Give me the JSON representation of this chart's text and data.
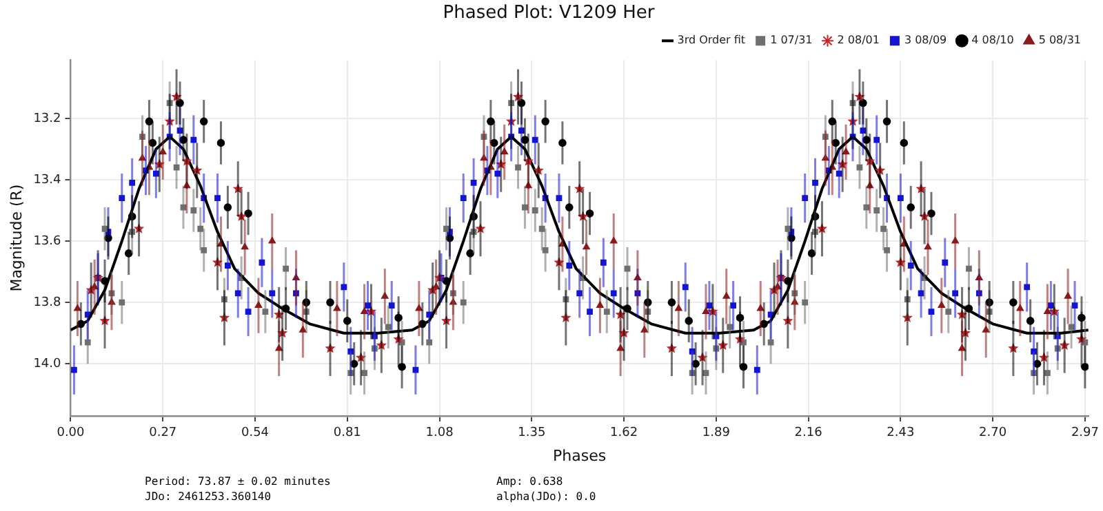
{
  "chart_data": {
    "type": "scatter",
    "title": "Phased Plot: V1209 Her",
    "xlabel": "Phases",
    "ylabel": "Magnitude (R)",
    "xlim": [
      0,
      2.98
    ],
    "xticks": [
      {
        "value": 0,
        "label": "0.00"
      },
      0.27,
      0.54,
      0.81,
      1.08,
      1.35,
      1.62,
      1.89,
      2.16,
      2.43,
      {
        "value": 2.7,
        "label": "2.70"
      },
      2.97
    ],
    "ylim": [
      14.17,
      13.01
    ],
    "yticks": [
      13.2,
      13.4,
      13.6,
      13.8,
      {
        "value": 14,
        "label": "14.0"
      }
    ],
    "grid": true,
    "legend": "top right",
    "annotations": [
      "Period: 73.87 ± 0.02 minutes",
      "JDo: 2461253.360140",
      "Amp: 0.638",
      "alpha(JDo): 0.0"
    ],
    "series": [
      {
        "name": "3rd Order fit",
        "type": "line",
        "color": "#000000",
        "marker": "none",
        "line_style": "solid",
        "x": [
          0,
          0.05,
          0.1,
          0.15,
          0.2,
          0.25,
          0.29,
          0.33,
          0.38,
          0.43,
          0.48,
          0.55,
          0.62,
          0.7,
          0.8,
          0.9,
          1,
          1.05,
          1.1,
          1.15,
          1.2,
          1.25,
          1.29,
          1.33,
          1.38,
          1.43,
          1.48,
          1.55,
          1.62,
          1.7,
          1.8,
          1.9,
          2,
          2.05,
          2.1,
          2.15,
          2.2,
          2.25,
          2.29,
          2.33,
          2.38,
          2.43,
          2.48,
          2.55,
          2.62,
          2.7,
          2.8,
          2.9,
          2.98
        ],
        "values": [
          13.89,
          13.86,
          13.76,
          13.6,
          13.43,
          13.3,
          13.26,
          13.3,
          13.42,
          13.57,
          13.69,
          13.77,
          13.82,
          13.87,
          13.9,
          13.9,
          13.89,
          13.86,
          13.76,
          13.6,
          13.43,
          13.3,
          13.26,
          13.3,
          13.42,
          13.57,
          13.69,
          13.77,
          13.82,
          13.87,
          13.9,
          13.9,
          13.89,
          13.86,
          13.76,
          13.6,
          13.43,
          13.3,
          13.26,
          13.3,
          13.42,
          13.57,
          13.69,
          13.77,
          13.82,
          13.87,
          13.9,
          13.9,
          13.89
        ]
      },
      {
        "name": "1 07/31",
        "type": "scatter",
        "color": "#707070",
        "marker": "square",
        "x": [
          0.05,
          0.1,
          0.12,
          0.15,
          0.18,
          0.21,
          0.29,
          0.31,
          0.33,
          0.36,
          0.38,
          0.39,
          0.45,
          0.5,
          0.57,
          0.63,
          0.69,
          0.82,
          0.86,
          0.89,
          0.93,
          0.97,
          1.05,
          1.1,
          1.12,
          1.15,
          1.18,
          1.21,
          1.29,
          1.31,
          1.33,
          1.36,
          1.38,
          1.39,
          1.45,
          1.5,
          1.57,
          1.63,
          1.69,
          1.82,
          1.86,
          1.89,
          1.93,
          1.97,
          2.05,
          2.1,
          2.12,
          2.15,
          2.18,
          2.21,
          2.29,
          2.31,
          2.33,
          2.36,
          2.38,
          2.39,
          2.45,
          2.5,
          2.57,
          2.63,
          2.69,
          2.82,
          2.86,
          2.89,
          2.93,
          2.97
        ],
        "values": [
          13.93,
          13.56,
          13.77,
          13.8,
          13.57,
          13.26,
          13.15,
          13.36,
          13.49,
          13.5,
          13.56,
          13.63,
          13.79,
          13.72,
          13.83,
          13.69,
          13.83,
          14.03,
          14.03,
          13.95,
          13.88,
          13.93,
          13.93,
          13.56,
          13.77,
          13.8,
          13.57,
          13.26,
          13.15,
          13.36,
          13.49,
          13.5,
          13.56,
          13.63,
          13.79,
          13.72,
          13.83,
          13.69,
          13.83,
          14.03,
          14.03,
          13.95,
          13.88,
          13.93,
          13.93,
          13.56,
          13.77,
          13.8,
          13.57,
          13.26,
          13.15,
          13.36,
          13.49,
          13.5,
          13.56,
          13.63,
          13.79,
          13.72,
          13.83,
          13.69,
          13.83,
          14.03,
          14.03,
          13.95,
          13.88,
          13.93
        ],
        "errors": [
          0.07,
          0.07,
          0.07,
          0.07,
          0.07,
          0.07,
          0.07,
          0.07,
          0.07,
          0.07,
          0.07,
          0.07,
          0.07,
          0.07,
          0.07,
          0.07,
          0.07,
          0.07,
          0.07,
          0.07,
          0.07,
          0.07,
          0.07,
          0.07,
          0.07,
          0.07,
          0.07,
          0.07,
          0.07,
          0.07,
          0.07,
          0.07,
          0.07,
          0.07,
          0.07,
          0.07,
          0.07,
          0.07,
          0.07,
          0.07,
          0.07,
          0.07,
          0.07,
          0.07,
          0.07,
          0.07,
          0.07,
          0.07,
          0.07,
          0.07,
          0.07,
          0.07,
          0.07,
          0.07,
          0.07,
          0.07,
          0.07,
          0.07,
          0.07,
          0.07,
          0.07,
          0.07,
          0.07,
          0.07,
          0.07,
          0.07
        ]
      },
      {
        "name": "2 08/01",
        "type": "scatter",
        "color": "#c0282d",
        "marker": "star",
        "x": [
          0.06,
          0.08,
          0.1,
          0.2,
          0.26,
          0.29,
          0.31,
          0.34,
          0.37,
          0.43,
          0.45,
          0.49,
          0.5,
          0.61,
          0.62,
          0.76,
          0.85,
          0.88,
          0.91,
          0.96,
          1.06,
          1.08,
          1.1,
          1.2,
          1.26,
          1.29,
          1.31,
          1.34,
          1.37,
          1.43,
          1.45,
          1.49,
          1.5,
          1.61,
          1.62,
          1.76,
          1.85,
          1.88,
          1.91,
          1.96,
          2.06,
          2.08,
          2.1,
          2.2,
          2.26,
          2.29,
          2.31,
          2.34,
          2.37,
          2.43,
          2.45,
          2.49,
          2.5,
          2.61,
          2.62,
          2.76,
          2.85,
          2.88,
          2.91,
          2.96
        ],
        "values": [
          13.76,
          13.72,
          13.86,
          13.56,
          13.35,
          13.21,
          13.13,
          13.34,
          13.37,
          13.67,
          13.85,
          13.43,
          13.52,
          13.84,
          13.9,
          13.95,
          13.98,
          13.83,
          13.94,
          13.92,
          13.76,
          13.72,
          13.86,
          13.56,
          13.35,
          13.21,
          13.13,
          13.34,
          13.37,
          13.67,
          13.85,
          13.43,
          13.52,
          13.84,
          13.9,
          13.95,
          13.98,
          13.83,
          13.94,
          13.92,
          13.76,
          13.72,
          13.86,
          13.56,
          13.35,
          13.21,
          13.13,
          13.34,
          13.37,
          13.67,
          13.85,
          13.43,
          13.52,
          13.84,
          13.9,
          13.95,
          13.98,
          13.83,
          13.94,
          13.92
        ],
        "errors": [
          0.09,
          0.09,
          0.09,
          0.09,
          0.09,
          0.09,
          0.09,
          0.09,
          0.09,
          0.09,
          0.09,
          0.09,
          0.09,
          0.09,
          0.09,
          0.09,
          0.09,
          0.09,
          0.09,
          0.09,
          0.09,
          0.09,
          0.09,
          0.09,
          0.09,
          0.09,
          0.09,
          0.09,
          0.09,
          0.09,
          0.09,
          0.09,
          0.09,
          0.09,
          0.09,
          0.09,
          0.09,
          0.09,
          0.09,
          0.09,
          0.09,
          0.09,
          0.09,
          0.09,
          0.09,
          0.09,
          0.09,
          0.09,
          0.09,
          0.09,
          0.09,
          0.09,
          0.09,
          0.09,
          0.09,
          0.09,
          0.09,
          0.09,
          0.09,
          0.09
        ]
      },
      {
        "name": "3 08/09",
        "type": "scatter",
        "color": "#1414d2",
        "marker": "square",
        "x": [
          0.01,
          0.05,
          0.08,
          0.11,
          0.15,
          0.18,
          0.22,
          0.25,
          0.29,
          0.32,
          0.36,
          0.39,
          0.43,
          0.46,
          0.49,
          0.52,
          0.56,
          0.59,
          0.66,
          0.8,
          0.82,
          0.87,
          0.89,
          0.94,
          1.01,
          1.05,
          1.085,
          1.11,
          1.15,
          1.18,
          1.22,
          1.25,
          1.29,
          1.32,
          1.36,
          1.39,
          1.43,
          1.46,
          1.49,
          1.52,
          1.56,
          1.59,
          1.66,
          1.8,
          1.82,
          1.87,
          1.89,
          1.94,
          2.01,
          2.05,
          2.08,
          2.11,
          2.15,
          2.18,
          2.22,
          2.25,
          2.29,
          2.32,
          2.36,
          2.39,
          2.43,
          2.46,
          2.49,
          2.52,
          2.56,
          2.59,
          2.66,
          2.8,
          2.82,
          2.87,
          2.89,
          2.94
        ],
        "values": [
          14.02,
          13.84,
          13.72,
          13.57,
          13.46,
          13.41,
          13.37,
          13.38,
          13.26,
          13.24,
          13.27,
          13.46,
          13.46,
          13.68,
          13.77,
          13.83,
          13.67,
          13.77,
          13.77,
          13.75,
          13.96,
          13.81,
          13.91,
          13.81,
          14.02,
          13.84,
          13.72,
          13.57,
          13.46,
          13.41,
          13.37,
          13.38,
          13.26,
          13.24,
          13.27,
          13.46,
          13.46,
          13.68,
          13.77,
          13.83,
          13.67,
          13.77,
          13.77,
          13.75,
          13.96,
          13.81,
          13.91,
          13.81,
          14.02,
          13.84,
          13.72,
          13.57,
          13.46,
          13.41,
          13.37,
          13.38,
          13.26,
          13.24,
          13.27,
          13.46,
          13.46,
          13.68,
          13.77,
          13.83,
          13.67,
          13.77,
          13.77,
          13.75,
          13.96,
          13.81,
          13.91,
          13.81
        ],
        "errors": [
          0.08,
          0.08,
          0.08,
          0.08,
          0.08,
          0.08,
          0.08,
          0.08,
          0.08,
          0.08,
          0.08,
          0.08,
          0.08,
          0.08,
          0.08,
          0.08,
          0.08,
          0.08,
          0.08,
          0.08,
          0.08,
          0.08,
          0.08,
          0.08,
          0.08,
          0.08,
          0.08,
          0.08,
          0.08,
          0.08,
          0.08,
          0.08,
          0.08,
          0.08,
          0.08,
          0.08,
          0.08,
          0.08,
          0.08,
          0.08,
          0.08,
          0.08,
          0.08,
          0.08,
          0.08,
          0.08,
          0.08,
          0.08,
          0.08,
          0.08,
          0.08,
          0.08,
          0.08,
          0.08,
          0.08,
          0.08,
          0.08,
          0.08,
          0.08,
          0.08,
          0.08,
          0.08,
          0.08,
          0.08,
          0.08,
          0.08,
          0.08,
          0.08,
          0.08,
          0.08,
          0.08,
          0.08
        ]
      },
      {
        "name": "4 08/10",
        "type": "scatter",
        "color": "#000000",
        "marker": "circle",
        "x": [
          0.03,
          0.1,
          0.11,
          0.17,
          0.18,
          0.23,
          0.24,
          0.32,
          0.33,
          0.39,
          0.44,
          0.46,
          0.52,
          0.63,
          0.69,
          0.76,
          0.81,
          0.83,
          0.96,
          0.97,
          1.03,
          1.1,
          1.11,
          1.17,
          1.18,
          1.23,
          1.24,
          1.32,
          1.33,
          1.39,
          1.44,
          1.46,
          1.52,
          1.63,
          1.69,
          1.76,
          1.81,
          1.83,
          1.96,
          1.97,
          2.03,
          2.1,
          2.11,
          2.17,
          2.18,
          2.23,
          2.24,
          2.32,
          2.33,
          2.39,
          2.44,
          2.46,
          2.52,
          2.63,
          2.69,
          2.76,
          2.81,
          2.83,
          2.96,
          2.97
        ],
        "values": [
          13.87,
          13.73,
          13.59,
          13.64,
          13.52,
          13.21,
          13.28,
          13.15,
          13.27,
          13.21,
          13.28,
          13.49,
          13.51,
          13.82,
          13.8,
          13.8,
          13.86,
          14,
          13.85,
          14.01,
          13.87,
          13.73,
          13.59,
          13.64,
          13.52,
          13.21,
          13.28,
          13.15,
          13.27,
          13.21,
          13.28,
          13.49,
          13.51,
          13.82,
          13.8,
          13.8,
          13.86,
          14,
          13.85,
          14.01,
          13.87,
          13.73,
          13.59,
          13.64,
          13.52,
          13.21,
          13.28,
          13.15,
          13.27,
          13.21,
          13.28,
          13.49,
          13.51,
          13.82,
          13.8,
          13.8,
          13.86,
          14,
          13.85,
          14.01
        ],
        "errors": [
          0.07,
          0.07,
          0.07,
          0.07,
          0.07,
          0.07,
          0.07,
          0.07,
          0.07,
          0.07,
          0.07,
          0.07,
          0.07,
          0.07,
          0.07,
          0.07,
          0.07,
          0.07,
          0.07,
          0.07,
          0.07,
          0.07,
          0.07,
          0.07,
          0.07,
          0.07,
          0.07,
          0.07,
          0.07,
          0.07,
          0.07,
          0.07,
          0.07,
          0.07,
          0.07,
          0.07,
          0.07,
          0.07,
          0.07,
          0.07,
          0.07,
          0.07,
          0.07,
          0.07,
          0.07,
          0.07,
          0.07,
          0.07,
          0.07,
          0.07,
          0.07,
          0.07,
          0.07,
          0.07,
          0.07,
          0.07,
          0.07,
          0.07,
          0.07,
          0.07
        ]
      },
      {
        "name": "5 08/31",
        "type": "scatter",
        "color": "#8b1a1a",
        "marker": "triangle",
        "x": [
          0.02,
          0.07,
          0.12,
          0.21,
          0.23,
          0.27,
          0.34,
          0.44,
          0.51,
          0.55,
          0.59,
          0.61,
          0.66,
          0.68,
          0.78,
          0.86,
          0.92,
          1.02,
          1.07,
          1.12,
          1.21,
          1.23,
          1.27,
          1.34,
          1.44,
          1.51,
          1.55,
          1.59,
          1.61,
          1.66,
          1.68,
          1.78,
          1.86,
          1.92,
          2.02,
          2.07,
          2.12,
          2.21,
          2.23,
          2.27,
          2.34,
          2.44,
          2.51,
          2.55,
          2.59,
          2.61,
          2.66,
          2.68,
          2.78,
          2.86,
          2.92
        ],
        "values": [
          13.82,
          13.75,
          13.8,
          13.33,
          13.36,
          13.31,
          13.42,
          13.61,
          13.62,
          13.81,
          13.6,
          13.95,
          13.72,
          13.89,
          13.82,
          13.83,
          13.78,
          13.82,
          13.75,
          13.8,
          13.33,
          13.36,
          13.31,
          13.42,
          13.61,
          13.62,
          13.81,
          13.6,
          13.95,
          13.72,
          13.89,
          13.82,
          13.83,
          13.78,
          13.82,
          13.75,
          13.8,
          13.33,
          13.36,
          13.31,
          13.42,
          13.61,
          13.62,
          13.81,
          13.6,
          13.95,
          13.72,
          13.89,
          13.82,
          13.83,
          13.78
        ],
        "errors": [
          0.09,
          0.09,
          0.09,
          0.09,
          0.09,
          0.09,
          0.09,
          0.09,
          0.09,
          0.09,
          0.09,
          0.09,
          0.09,
          0.09,
          0.09,
          0.09,
          0.09,
          0.09,
          0.09,
          0.09,
          0.09,
          0.09,
          0.09,
          0.09,
          0.09,
          0.09,
          0.09,
          0.09,
          0.09,
          0.09,
          0.09,
          0.09,
          0.09,
          0.09,
          0.09,
          0.09,
          0.09,
          0.09,
          0.09,
          0.09,
          0.09,
          0.09,
          0.09,
          0.09,
          0.09,
          0.09,
          0.09,
          0.09,
          0.09,
          0.09,
          0.09
        ]
      }
    ]
  }
}
